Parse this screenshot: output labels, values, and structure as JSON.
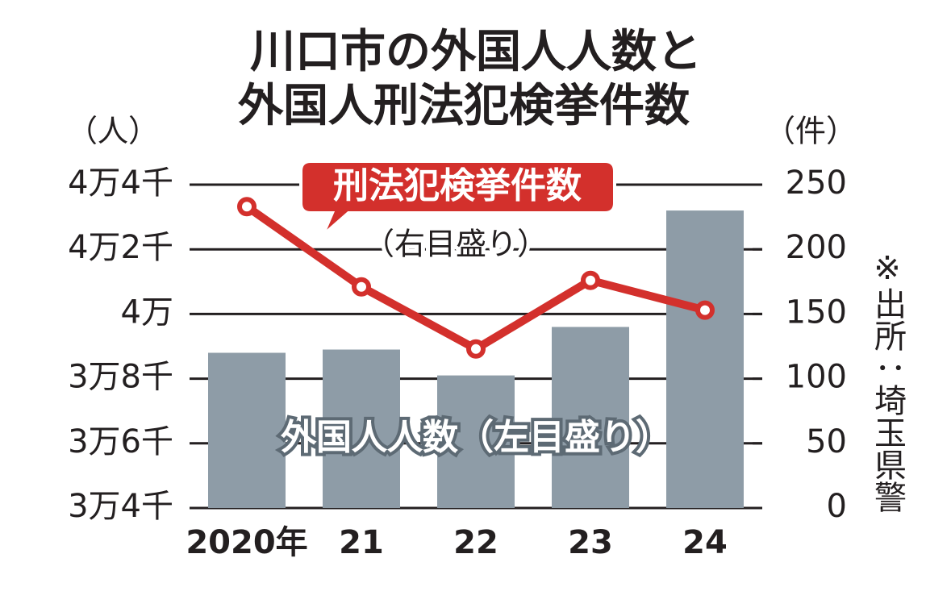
{
  "chart_data": {
    "type": "bar-line",
    "title": [
      "川口市の外国人人数と",
      "外国人刑法犯検挙件数"
    ],
    "y_unit": "（人）",
    "y2_unit": "（件）",
    "categories": [
      "2020年",
      "21",
      "22",
      "23",
      "24"
    ],
    "series": [
      {
        "name": "外国人人数（左目盛り）",
        "type": "bar",
        "color": "#8e9ca7",
        "values": [
          38800,
          38900,
          38100,
          39600,
          43200
        ]
      },
      {
        "name": "刑法犯検挙件数",
        "note": "（右目盛り）",
        "type": "line",
        "axis": "y2",
        "color": "#d3302c",
        "values": [
          233,
          171,
          123,
          176,
          153
        ]
      }
    ],
    "ylim": [
      34000,
      44000
    ],
    "yticks": [
      {
        "value": 34000,
        "label": "3万4千"
      },
      {
        "value": 36000,
        "label": "3万6千"
      },
      {
        "value": 38000,
        "label": "3万8千"
      },
      {
        "value": 40000,
        "label": "4万"
      },
      {
        "value": 42000,
        "label": "4万2千"
      },
      {
        "value": 44000,
        "label": "4万4千"
      }
    ],
    "y2lim": [
      0,
      250
    ],
    "y2ticks": [
      0,
      50,
      100,
      150,
      200,
      250
    ],
    "grid": true,
    "source": "※出所：埼玉県警"
  }
}
